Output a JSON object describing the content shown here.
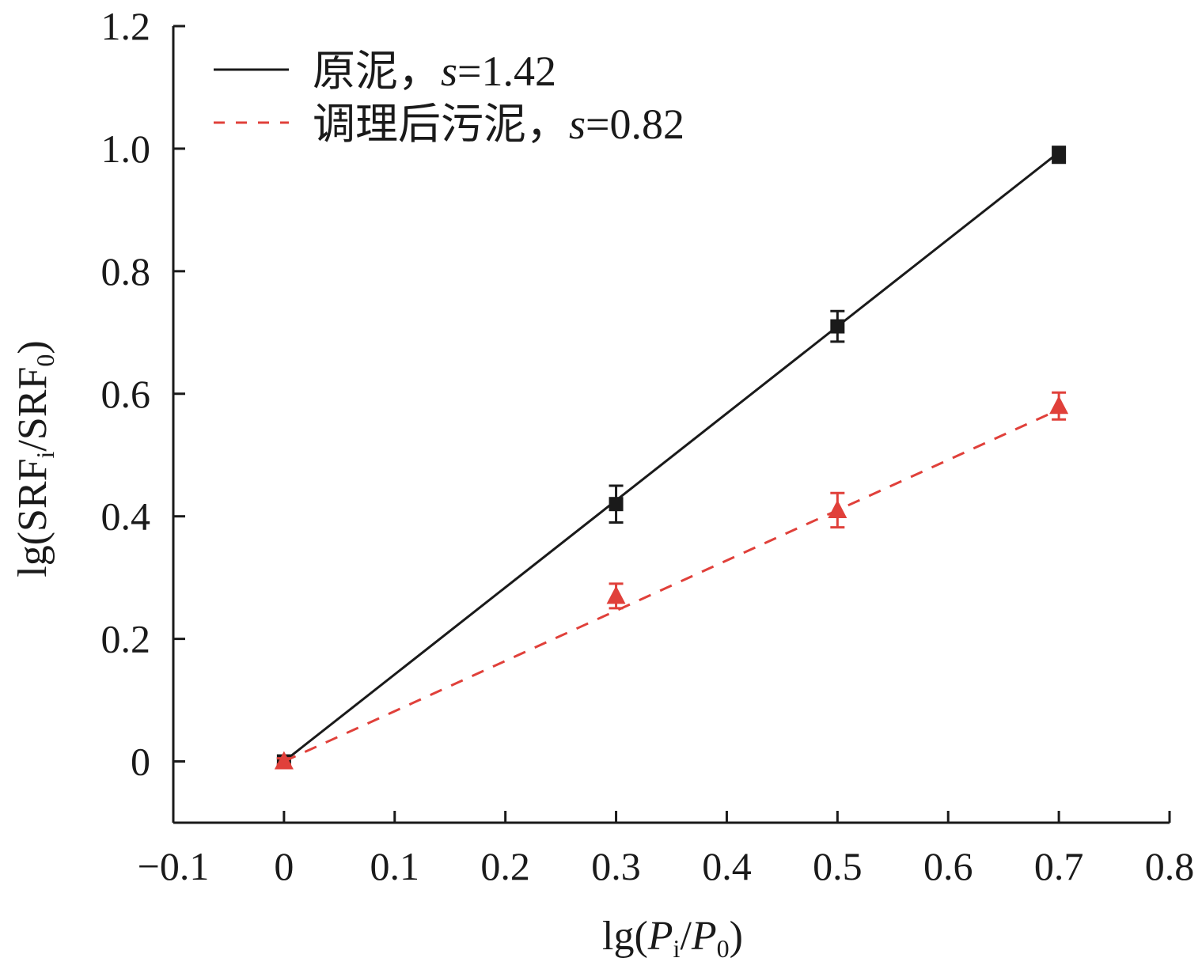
{
  "chart_data": {
    "type": "scatter",
    "title": "",
    "xlabel_parts": [
      {
        "t": "lg("
      },
      {
        "t": "P",
        "italic": true
      },
      {
        "t": "i",
        "sub": true
      },
      {
        "t": "/"
      },
      {
        "t": "P",
        "italic": true
      },
      {
        "t": "0",
        "sub": true
      },
      {
        "t": ")"
      }
    ],
    "ylabel_parts": [
      {
        "t": "lg(SRF"
      },
      {
        "t": "i",
        "sub": true
      },
      {
        "t": "/SRF"
      },
      {
        "t": "0",
        "sub": true
      },
      {
        "t": ")"
      }
    ],
    "xlim": [
      -0.1,
      0.8
    ],
    "ylim": [
      -0.1,
      1.2
    ],
    "xticks": [
      -0.1,
      0,
      0.1,
      0.2,
      0.3,
      0.4,
      0.5,
      0.6,
      0.7,
      0.8
    ],
    "xtick_labels": [
      "−0.1",
      "0",
      "0.1",
      "0.2",
      "0.3",
      "0.4",
      "0.5",
      "0.6",
      "0.7",
      "0.8"
    ],
    "yticks": [
      0,
      0.2,
      0.4,
      0.6,
      0.8,
      1.0,
      1.2
    ],
    "ytick_labels": [
      "0",
      "0.2",
      "0.4",
      "0.6",
      "0.8",
      "1.0",
      "1.2"
    ],
    "grid": false,
    "legend_position": "top-left",
    "series": [
      {
        "name": "原泥",
        "slope_label": "s",
        "slope_value": "=1.42",
        "slope": 1.42,
        "color": "#1a1a1a",
        "line": "solid",
        "marker": "square",
        "x": [
          0,
          0.3,
          0.5,
          0.7
        ],
        "y": [
          0,
          0.42,
          0.71,
          0.99
        ],
        "err": [
          0.005,
          0.03,
          0.025,
          0.013
        ]
      },
      {
        "name": "调理后污泥",
        "slope_label": "s",
        "slope_value": "=0.82",
        "slope": 0.82,
        "color": "#e0403a",
        "line": "dashed",
        "marker": "triangle",
        "x": [
          0,
          0.3,
          0.5,
          0.7
        ],
        "y": [
          0,
          0.27,
          0.41,
          0.58
        ],
        "err": [
          0.005,
          0.02,
          0.028,
          0.022
        ]
      }
    ]
  }
}
